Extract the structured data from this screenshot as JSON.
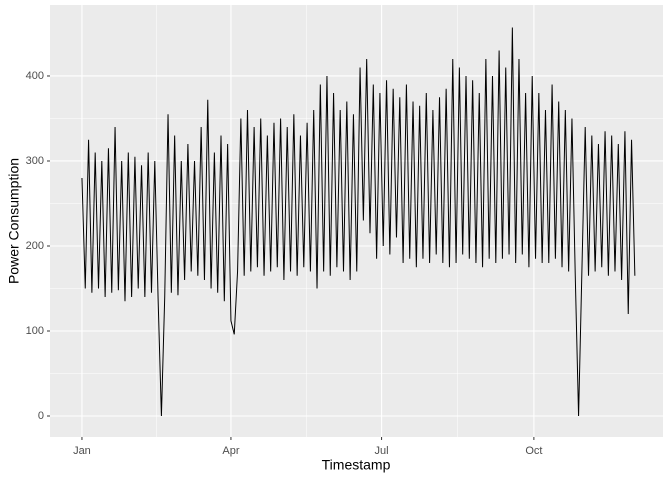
{
  "chart_data": {
    "type": "line",
    "x_label": "Timestamp",
    "y_label": "Power Consumption",
    "xlim": [
      -19.3,
      351
    ],
    "ylim": [
      -24.7,
      483.5
    ],
    "xticks": [
      {
        "value": 0,
        "label": "Jan"
      },
      {
        "value": 90,
        "label": "Apr"
      },
      {
        "value": 181,
        "label": "Jul"
      },
      {
        "value": 273,
        "label": "Oct"
      }
    ],
    "yticks": [
      0,
      100,
      200,
      300,
      400
    ],
    "grid": true,
    "color": "#000000",
    "x": [
      0,
      2,
      4,
      6,
      8,
      10,
      12,
      14,
      16,
      18,
      20,
      22,
      24,
      26,
      28,
      30,
      32,
      34,
      36,
      38,
      40,
      42,
      44,
      46,
      48,
      50,
      52,
      54,
      56,
      58,
      60,
      62,
      64,
      66,
      68,
      70,
      72,
      74,
      76,
      78,
      80,
      82,
      84,
      86,
      88,
      90,
      92,
      94,
      96,
      98,
      100,
      102,
      104,
      106,
      108,
      110,
      112,
      114,
      116,
      118,
      120,
      122,
      124,
      126,
      128,
      130,
      132,
      134,
      136,
      138,
      140,
      142,
      144,
      146,
      148,
      150,
      152,
      154,
      156,
      158,
      160,
      162,
      164,
      166,
      168,
      170,
      172,
      174,
      176,
      178,
      180,
      182,
      184,
      186,
      188,
      190,
      192,
      194,
      196,
      198,
      200,
      202,
      204,
      206,
      208,
      210,
      212,
      214,
      216,
      218,
      220,
      222,
      224,
      226,
      228,
      230,
      232,
      234,
      236,
      238,
      240,
      242,
      244,
      246,
      248,
      250,
      252,
      254,
      256,
      258,
      260,
      262,
      264,
      266,
      268,
      270,
      272,
      274,
      276,
      278,
      280,
      282,
      284,
      286,
      288,
      290,
      292,
      294,
      296,
      298,
      300,
      302,
      304,
      306,
      308,
      310,
      312,
      314,
      316,
      318,
      320,
      322,
      324,
      326,
      328,
      330,
      332,
      334
    ],
    "values": [
      280,
      150,
      325,
      145,
      310,
      150,
      300,
      140,
      315,
      145,
      340,
      148,
      300,
      135,
      310,
      140,
      305,
      150,
      295,
      140,
      310,
      145,
      300,
      138,
      0,
      140,
      355,
      145,
      330,
      142,
      300,
      160,
      320,
      170,
      300,
      165,
      340,
      160,
      372,
      150,
      310,
      145,
      330,
      135,
      320,
      112,
      96,
      170,
      350,
      165,
      360,
      170,
      340,
      175,
      350,
      165,
      330,
      170,
      345,
      175,
      350,
      160,
      340,
      170,
      355,
      165,
      330,
      175,
      345,
      170,
      360,
      150,
      390,
      170,
      400,
      165,
      380,
      175,
      360,
      170,
      370,
      160,
      355,
      170,
      410,
      230,
      420,
      215,
      390,
      185,
      380,
      200,
      395,
      190,
      385,
      210,
      375,
      180,
      390,
      185,
      370,
      175,
      365,
      185,
      380,
      180,
      360,
      190,
      375,
      180,
      385,
      175,
      420,
      180,
      410,
      190,
      400,
      185,
      395,
      180,
      380,
      175,
      420,
      185,
      400,
      180,
      430,
      185,
      410,
      190,
      457,
      180,
      420,
      190,
      380,
      175,
      400,
      185,
      380,
      180,
      360,
      180,
      390,
      185,
      370,
      175,
      360,
      170,
      350,
      165,
      0,
      170,
      340,
      165,
      330,
      170,
      320,
      175,
      335,
      165,
      330,
      170,
      320,
      160,
      335,
      120,
      325,
      165
    ]
  }
}
